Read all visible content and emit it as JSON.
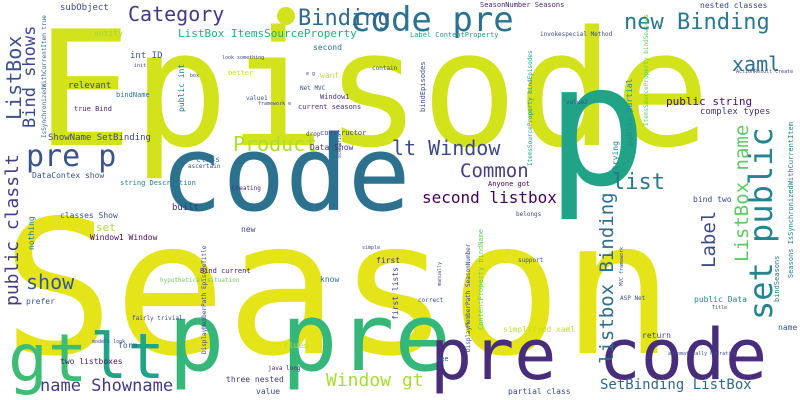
{
  "words": [
    {
      "text": "Season",
      "color": "#e5e419"
    },
    {
      "text": "Episode",
      "color": "#d2e21b"
    },
    {
      "text": "code",
      "color": "#2c728e"
    },
    {
      "text": "p",
      "color": "#20a386"
    },
    {
      "text": "p pre",
      "color": "#35b779"
    },
    {
      "text": "pre code",
      "color": "#472d7b"
    },
    {
      "text": "gt",
      "color": "#3dbc74"
    },
    {
      "text": "lt",
      "color": "#20a486"
    },
    {
      "text": "code pre",
      "color": "#2c728e"
    },
    {
      "text": "pre p",
      "color": "#3b528b"
    },
    {
      "text": "set public",
      "color": "#25858e"
    },
    {
      "text": "new Binding",
      "color": "#2a788e"
    },
    {
      "text": "Binding",
      "color": "#31688e"
    },
    {
      "text": "Category",
      "color": "#443983"
    },
    {
      "text": "lt Window",
      "color": "#3e4989"
    },
    {
      "text": "Product",
      "color": "#addc30"
    },
    {
      "text": "Common",
      "color": "#433e85"
    },
    {
      "text": "list",
      "color": "#2a788e"
    },
    {
      "text": "xaml",
      "color": "#2d708e"
    },
    {
      "text": "show",
      "color": "#38598c"
    },
    {
      "text": "name Showname",
      "color": "#443983"
    },
    {
      "text": "Window gt",
      "color": "#a8db34"
    },
    {
      "text": "SetBinding ListBox",
      "color": "#31688e"
    },
    {
      "text": "second listbox",
      "color": "#440154"
    },
    {
      "text": "public classlt",
      "color": "#443b84"
    },
    {
      "text": "ListBox",
      "color": "#3b528b"
    },
    {
      "text": "Bind shows",
      "color": "#3e4989"
    },
    {
      "text": "listbox Binding",
      "color": "#2e6e8e"
    },
    {
      "text": "Label",
      "color": "#3e4c8a"
    },
    {
      "text": "ListBox name",
      "color": "#5ec962"
    },
    {
      "text": "public string",
      "color": "#471063"
    },
    {
      "text": "complex types",
      "color": "#46327e"
    },
    {
      "text": "nested classes",
      "color": "#414487"
    },
    {
      "text": "SeasonNumber Seasons",
      "color": "#481a6c"
    },
    {
      "text": "ListBox ItemsSourceProperty",
      "color": "#25ac82"
    },
    {
      "text": "Label ContentProperty",
      "color": "#1f9e89"
    },
    {
      "text": "int ID",
      "color": "#3b528b"
    },
    {
      "text": "subObject",
      "color": "#414487"
    },
    {
      "text": "entity",
      "color": "#9dd93b"
    },
    {
      "text": "relevant",
      "color": "#3f4788"
    },
    {
      "text": "bindName",
      "color": "#2c728e"
    },
    {
      "text": "true Bind",
      "color": "#482576"
    },
    {
      "text": "ShowName SetBinding",
      "color": "#414487"
    },
    {
      "text": "DataContex show",
      "color": "#3b528b"
    },
    {
      "text": "string Description",
      "color": "#297b8e"
    },
    {
      "text": "Data Show",
      "color": "#46337f"
    },
    {
      "text": "Anyone got",
      "color": "#440154"
    },
    {
      "text": "classes Show",
      "color": "#3b528b"
    },
    {
      "text": "Window1 Window",
      "color": "#46085c"
    },
    {
      "text": "Bind current",
      "color": "#482173"
    },
    {
      "text": "hypothetical situation",
      "color": "#6ccd5a"
    },
    {
      "text": "built",
      "color": "#472d7b"
    },
    {
      "text": "bind two",
      "color": "#3f4788"
    },
    {
      "text": "first",
      "color": "#46337f"
    },
    {
      "text": "current seasons",
      "color": "#472c7a"
    },
    {
      "text": "second",
      "color": "#2c728e"
    },
    {
      "text": "want",
      "color": "#c2df23"
    },
    {
      "text": "Window1",
      "color": "#46337f"
    },
    {
      "text": "better",
      "color": "#c5e021"
    },
    {
      "text": "public int",
      "color": "#2a788e"
    },
    {
      "text": "bindEpisodes",
      "color": "#3e4989"
    },
    {
      "text": "public Data",
      "color": "#23898e"
    },
    {
      "text": "ASP Net",
      "color": "#3b528b"
    },
    {
      "text": "two listboxes",
      "color": "#481769"
    },
    {
      "text": "simplifyed xaml",
      "color": "#c5e021"
    },
    {
      "text": "return",
      "color": "#3e4989"
    },
    {
      "text": "partial class",
      "color": "#3e4989"
    },
    {
      "text": "three nested",
      "color": "#453781"
    },
    {
      "text": "value",
      "color": "#3e4989"
    },
    {
      "text": "java long",
      "color": "#482475"
    },
    {
      "text": "clues",
      "color": "#b5de2b"
    },
    {
      "text": "form",
      "color": "#375b8d"
    },
    {
      "text": "fairly trivial",
      "color": "#404588"
    },
    {
      "text": "prefer",
      "color": "#39568c"
    },
    {
      "text": "nothing",
      "color": "#287d8e"
    },
    {
      "text": "new",
      "color": "#3e4989"
    },
    {
      "text": "set",
      "color": "#addc30"
    },
    {
      "text": "class",
      "color": "#2c728e"
    },
    {
      "text": "name",
      "color": "#3b528b"
    },
    {
      "text": "Seasons IsSynchronizedWithCurrentItem",
      "color": "#287c8e"
    },
    {
      "text": "bindSeasons",
      "color": "#2a788e"
    },
    {
      "text": "DisplayMemberPath SeasonNumber",
      "color": "#3e4989"
    },
    {
      "text": "ContentProperty bindName",
      "color": "#6ccd5a"
    },
    {
      "text": "ItemsSourceProperty bindEpisodes",
      "color": "#1f968b"
    },
    {
      "text": "IsSynchronizedWithCurrentItem true",
      "color": "#32648e"
    },
    {
      "text": "DisplayMemberPath EpisodeTitle",
      "color": "#3e4989"
    },
    {
      "text": "know",
      "color": "#306a8e"
    },
    {
      "text": "see",
      "color": "#3e4989"
    },
    {
      "text": "trying",
      "color": "#277f8e"
    },
    {
      "text": "public partial",
      "color": "#21918c"
    },
    {
      "text": "ItemsSourceProperty bindSeasons",
      "color": "#5ec962"
    },
    {
      "text": "first lists",
      "color": "#3e4989"
    },
    {
      "text": "invokespecial Method",
      "color": "#3e4989"
    },
    {
      "text": "value1",
      "color": "#3b528b"
    },
    {
      "text": "value2",
      "color": "#3b528b"
    },
    {
      "text": "constructor",
      "color": "#3e4989"
    },
    {
      "text": "drop",
      "color": "#3e4989"
    },
    {
      "text": "Creating",
      "color": "#482878"
    },
    {
      "text": "ascertain",
      "color": "#3e4989"
    },
    {
      "text": "support",
      "color": "#3b528b"
    },
    {
      "text": "contain",
      "color": "#3b528b"
    },
    {
      "text": "correct",
      "color": "#3e4989"
    },
    {
      "text": "belongs",
      "color": "#3e4989"
    },
    {
      "text": "Net MVC",
      "color": "#3e4989"
    },
    {
      "text": "models look",
      "color": "#3e4989"
    },
    {
      "text": "look something",
      "color": "#3e4989"
    },
    {
      "text": "automatically hydrating",
      "color": "#3e4989"
    },
    {
      "text": "ActionResult Create",
      "color": "#3e4989"
    },
    {
      "text": "MVC framework",
      "color": "#3e4989"
    },
    {
      "text": "framework e",
      "color": "#3e4989"
    },
    {
      "text": "Title",
      "color": "#3e4989"
    },
    {
      "text": "box",
      "color": "#3e4989"
    },
    {
      "text": "init",
      "color": "#3e4989"
    },
    {
      "text": "simple",
      "color": "#3e4989"
    },
    {
      "text": "manually",
      "color": "#3e4989"
    },
    {
      "text": "scenario",
      "color": "#3e4989"
    },
    {
      "text": "e g",
      "color": "#3e4989"
    }
  ]
}
